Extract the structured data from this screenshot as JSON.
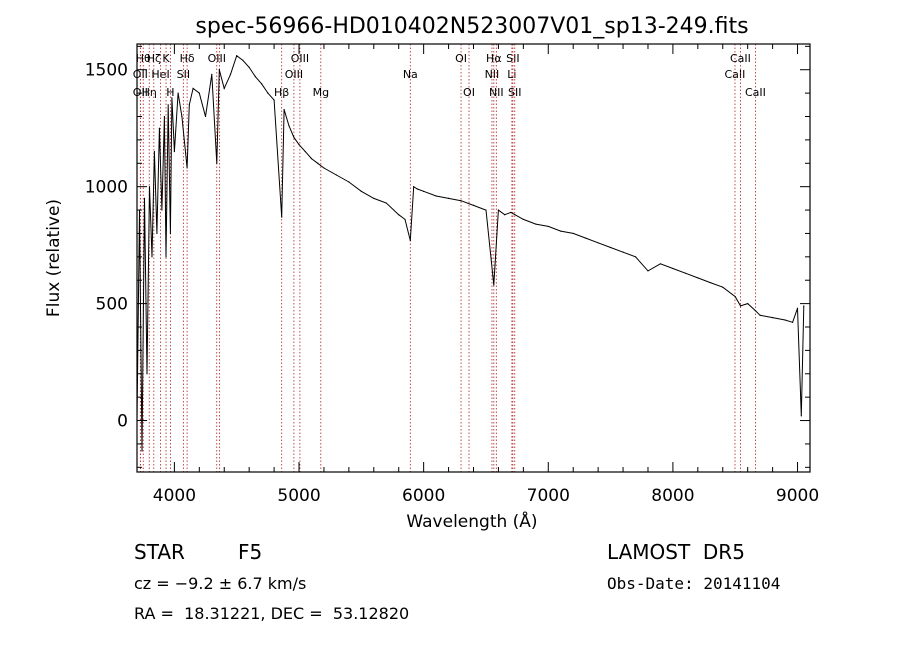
{
  "chart_data": {
    "type": "line",
    "title": "spec-56966-HD010402N523007V01_sp13-249.fits",
    "xlabel": "Wavelength (Å)",
    "ylabel": "Flux (relative)",
    "xlim": [
      3700,
      9100
    ],
    "ylim": [
      -220,
      1610
    ],
    "xticks": [
      4000,
      5000,
      6000,
      7000,
      8000,
      9000
    ],
    "yticks": [
      0,
      500,
      1000,
      1500
    ],
    "grid": false,
    "series": [
      {
        "x": [
          3700,
          3720,
          3740,
          3760,
          3780,
          3800,
          3820,
          3840,
          3860,
          3880,
          3900,
          3920,
          3933,
          3950,
          3968,
          3980,
          4000,
          4030,
          4060,
          4102,
          4120,
          4150,
          4200,
          4250,
          4300,
          4340,
          4360,
          4400,
          4450,
          4500,
          4550,
          4600,
          4650,
          4700,
          4750,
          4800,
          4861,
          4880,
          4920,
          4960,
          5000,
          5050,
          5100,
          5150,
          5200,
          5300,
          5400,
          5500,
          5600,
          5700,
          5800,
          5850,
          5893,
          5920,
          5950,
          6000,
          6100,
          6200,
          6300,
          6400,
          6500,
          6563,
          6600,
          6650,
          6700,
          6800,
          6900,
          7000,
          7100,
          7200,
          7300,
          7400,
          7500,
          7600,
          7700,
          7800,
          7900,
          8000,
          8100,
          8200,
          8300,
          8400,
          8500,
          8542,
          8600,
          8662,
          8700,
          8800,
          8900,
          8960,
          9000,
          9030,
          9050
        ],
        "y": [
          0,
          900,
          -130,
          950,
          200,
          1000,
          700,
          1150,
          800,
          1250,
          900,
          1300,
          700,
          1350,
          800,
          1380,
          1150,
          1400,
          1300,
          1080,
          1350,
          1420,
          1400,
          1300,
          1480,
          1100,
          1500,
          1420,
          1480,
          1560,
          1540,
          1510,
          1470,
          1440,
          1400,
          1370,
          870,
          1330,
          1260,
          1210,
          1180,
          1150,
          1120,
          1100,
          1080,
          1050,
          1020,
          980,
          950,
          930,
          880,
          860,
          770,
          1000,
          990,
          980,
          960,
          950,
          940,
          920,
          900,
          580,
          900,
          880,
          890,
          860,
          840,
          830,
          810,
          800,
          780,
          760,
          740,
          720,
          700,
          640,
          670,
          650,
          630,
          610,
          590,
          570,
          530,
          490,
          500,
          470,
          450,
          440,
          430,
          420,
          480,
          20,
          490
        ]
      }
    ],
    "lines": [
      {
        "x": 3750,
        "label": "Hθ",
        "row": 1
      },
      {
        "x": 3727,
        "label": "OII",
        "row": 2
      },
      {
        "x": 3727,
        "label": "OII",
        "row": 3
      },
      {
        "x": 3798,
        "label": "Hη",
        "row": 3
      },
      {
        "x": 3835,
        "label": "Hζ",
        "row": 1
      },
      {
        "x": 3889,
        "label": "HeI",
        "row": 2
      },
      {
        "x": 3933,
        "label": "K",
        "row": 1
      },
      {
        "x": 3968,
        "label": "H",
        "row": 3
      },
      {
        "x": 4072,
        "label": "SII",
        "row": 2
      },
      {
        "x": 4102,
        "label": "Hδ",
        "row": 1
      },
      {
        "x": 4340,
        "label": "OIII",
        "row": 1
      },
      {
        "x": 4363,
        "label": "",
        "row": 2
      },
      {
        "x": 4861,
        "label": "Hβ",
        "row": 3
      },
      {
        "x": 4959,
        "label": "OIII",
        "row": 2
      },
      {
        "x": 5007,
        "label": "OIII",
        "row": 1
      },
      {
        "x": 5175,
        "label": "Mg",
        "row": 3
      },
      {
        "x": 5893,
        "label": "Na",
        "row": 2
      },
      {
        "x": 6300,
        "label": "OI",
        "row": 1
      },
      {
        "x": 6364,
        "label": "OI",
        "row": 3
      },
      {
        "x": 6548,
        "label": "NII",
        "row": 2
      },
      {
        "x": 6563,
        "label": "Hα",
        "row": 1
      },
      {
        "x": 6583,
        "label": "NII",
        "row": 3
      },
      {
        "x": 6708,
        "label": "Li",
        "row": 2
      },
      {
        "x": 6716,
        "label": "SII",
        "row": 1
      },
      {
        "x": 6731,
        "label": "SII",
        "row": 3
      },
      {
        "x": 8498,
        "label": "CaII",
        "row": 2
      },
      {
        "x": 8542,
        "label": "CaII",
        "row": 1
      },
      {
        "x": 8662,
        "label": "CaII",
        "row": 3
      }
    ]
  },
  "info": {
    "object_class": "STAR",
    "subclass": "F5",
    "survey": "LAMOST  DR5",
    "velocity": "cz = −9.2 ± 6.7 km/s",
    "obs_date": "Obs-Date: 20141104",
    "coords": "RA =  18.31221, DEC =  53.12820"
  }
}
